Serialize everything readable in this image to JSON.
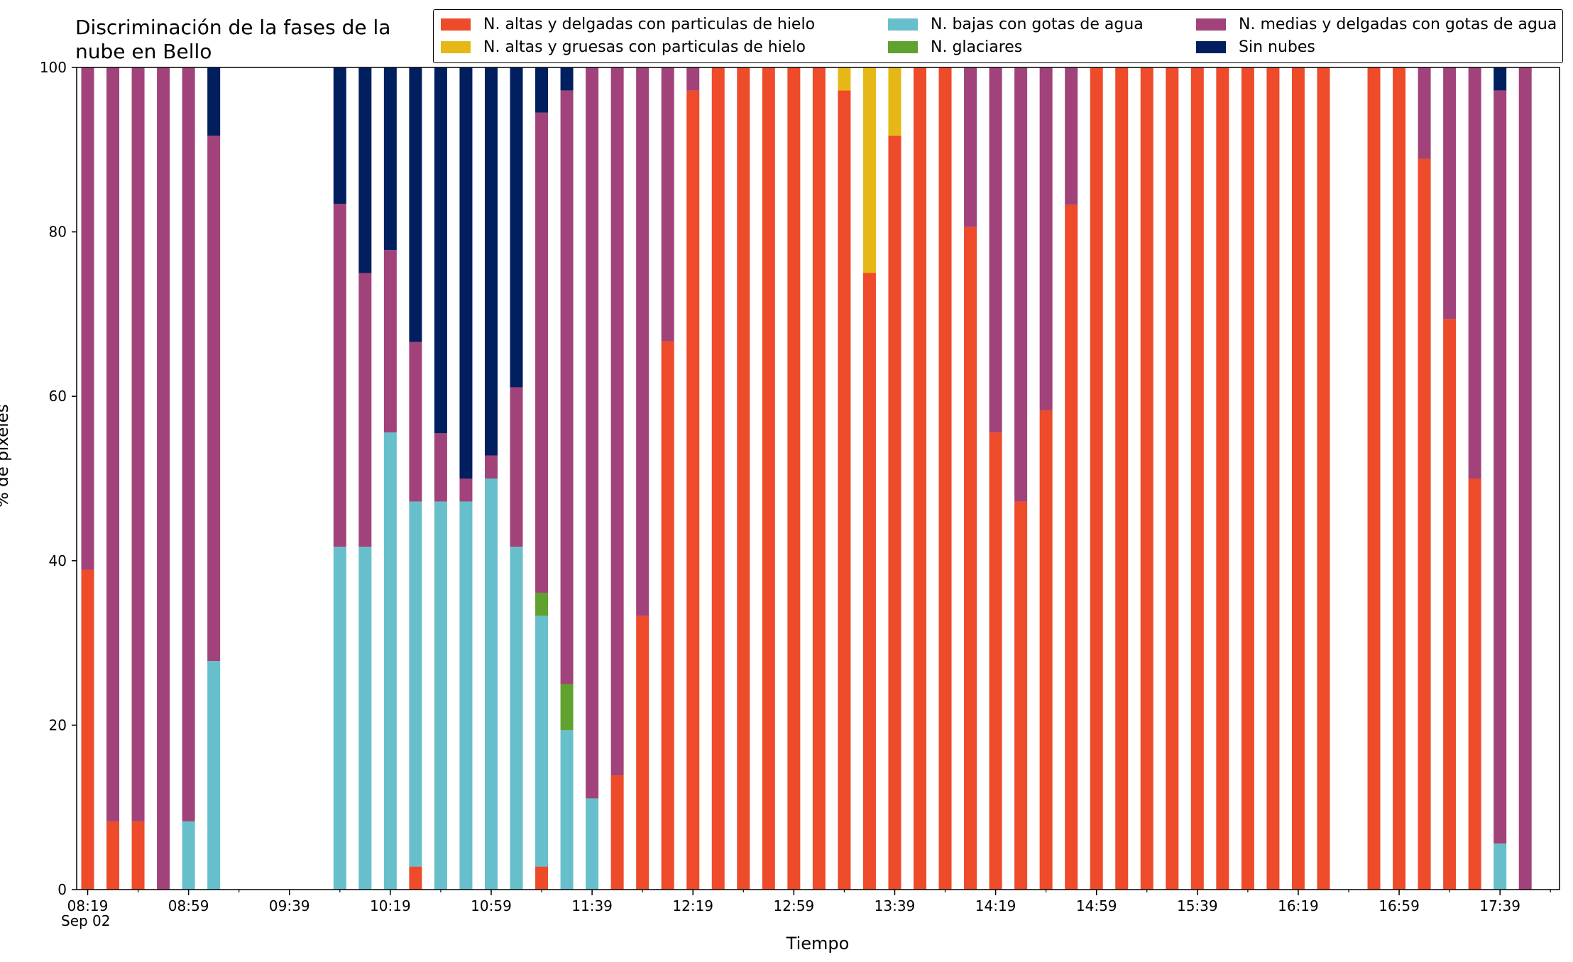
{
  "chart_data": {
    "type": "bar",
    "stacked": true,
    "title_lines": [
      "Discriminación de la fases de la",
      "nube en Bello"
    ],
    "xlabel": "Tiempo",
    "ylabel": "% de pixeles",
    "date_label": "Sep 02",
    "ylim": [
      0,
      100
    ],
    "yticks": [
      0,
      20,
      40,
      60,
      80,
      100
    ],
    "xtick_labels": [
      "08:19",
      "08:59",
      "09:39",
      "10:19",
      "10:59",
      "11:39",
      "12:19",
      "12:59",
      "13:39",
      "14:19",
      "14:59",
      "15:39",
      "16:19",
      "16:59",
      "17:39"
    ],
    "x_start": "08:19",
    "x_end": "17:59",
    "x_step_minutes": 10,
    "minor_tick_minutes": 20,
    "grid": false,
    "legend_position": "top-right",
    "series": [
      {
        "name": "N. altas y delgadas con particulas de hielo",
        "color": "#ee4b2b"
      },
      {
        "name": "N. altas y gruesas con particulas de hielo",
        "color": "#e6b817"
      },
      {
        "name": "N. bajas con gotas de agua",
        "color": "#67bfcb"
      },
      {
        "name": "N. glaciares",
        "color": "#60a22f"
      },
      {
        "name": "N. medias y delgadas con gotas de agua",
        "color": "#a1437a"
      },
      {
        "name": "Sin nubes",
        "color": "#011f5e"
      }
    ],
    "bars": [
      {
        "time": "08:19",
        "values": [
          38.9,
          0,
          0,
          0,
          61.1,
          0
        ]
      },
      {
        "time": "08:29",
        "values": [
          8.3,
          0,
          0,
          0,
          91.7,
          0
        ]
      },
      {
        "time": "08:39",
        "values": [
          8.3,
          0,
          0,
          0,
          91.7,
          0
        ]
      },
      {
        "time": "08:49",
        "values": [
          0,
          0,
          0,
          0,
          100,
          0
        ]
      },
      {
        "time": "08:59",
        "values": [
          0,
          0,
          8.3,
          0,
          91.7,
          0
        ]
      },
      {
        "time": "09:09",
        "values": [
          0,
          0,
          27.8,
          0,
          63.9,
          8.3
        ]
      },
      {
        "time": "09:19",
        "values": null
      },
      {
        "time": "09:29",
        "values": null
      },
      {
        "time": "09:39",
        "values": null
      },
      {
        "time": "09:49",
        "values": null
      },
      {
        "time": "09:59",
        "values": [
          0,
          0,
          41.7,
          0,
          41.7,
          16.6
        ]
      },
      {
        "time": "10:09",
        "values": [
          0,
          0,
          41.7,
          0,
          33.3,
          25.0
        ]
      },
      {
        "time": "10:19",
        "values": [
          0,
          0,
          55.6,
          0,
          22.2,
          22.2
        ]
      },
      {
        "time": "10:29",
        "values": [
          2.8,
          0,
          44.4,
          0,
          19.4,
          33.4
        ]
      },
      {
        "time": "10:39",
        "values": [
          0,
          0,
          47.2,
          0,
          8.3,
          44.5
        ]
      },
      {
        "time": "10:49",
        "values": [
          0,
          0,
          47.2,
          0,
          2.8,
          50.0
        ]
      },
      {
        "time": "10:59",
        "values": [
          0,
          0,
          50.0,
          0,
          2.8,
          47.2
        ]
      },
      {
        "time": "11:09",
        "values": [
          0,
          0,
          41.7,
          0,
          19.4,
          38.9
        ]
      },
      {
        "time": "11:19",
        "values": [
          2.8,
          0,
          30.5,
          2.8,
          58.4,
          5.5
        ]
      },
      {
        "time": "11:29",
        "values": [
          0,
          0,
          19.4,
          5.6,
          72.2,
          2.8
        ]
      },
      {
        "time": "11:39",
        "values": [
          0,
          0,
          11.1,
          0,
          88.9,
          0
        ]
      },
      {
        "time": "11:49",
        "values": [
          13.9,
          0,
          0,
          0,
          86.1,
          0
        ]
      },
      {
        "time": "11:59",
        "values": [
          33.3,
          0,
          0,
          0,
          66.7,
          0
        ]
      },
      {
        "time": "12:09",
        "values": [
          66.7,
          0,
          0,
          0,
          33.3,
          0
        ]
      },
      {
        "time": "12:19",
        "values": [
          97.2,
          0,
          0,
          0,
          2.8,
          0
        ]
      },
      {
        "time": "12:29",
        "values": [
          100,
          0,
          0,
          0,
          0,
          0
        ]
      },
      {
        "time": "12:39",
        "values": [
          100,
          0,
          0,
          0,
          0,
          0
        ]
      },
      {
        "time": "12:49",
        "values": [
          100,
          0,
          0,
          0,
          0,
          0
        ]
      },
      {
        "time": "12:59",
        "values": [
          100,
          0,
          0,
          0,
          0,
          0
        ]
      },
      {
        "time": "13:09",
        "values": [
          100,
          0,
          0,
          0,
          0,
          0
        ]
      },
      {
        "time": "13:19",
        "values": [
          97.2,
          2.8,
          0,
          0,
          0,
          0
        ]
      },
      {
        "time": "13:29",
        "values": [
          75.0,
          25.0,
          0,
          0,
          0,
          0
        ]
      },
      {
        "time": "13:39",
        "values": [
          91.7,
          8.3,
          0,
          0,
          0,
          0
        ]
      },
      {
        "time": "13:49",
        "values": [
          100,
          0,
          0,
          0,
          0,
          0
        ]
      },
      {
        "time": "13:59",
        "values": [
          100,
          0,
          0,
          0,
          0,
          0
        ]
      },
      {
        "time": "14:09",
        "values": [
          80.6,
          0,
          0,
          0,
          19.4,
          0
        ]
      },
      {
        "time": "14:19",
        "values": [
          55.6,
          0,
          0,
          0,
          44.4,
          0
        ]
      },
      {
        "time": "14:29",
        "values": [
          47.2,
          0,
          0,
          0,
          52.8,
          0
        ]
      },
      {
        "time": "14:39",
        "values": [
          58.3,
          0,
          0,
          0,
          41.7,
          0
        ]
      },
      {
        "time": "14:49",
        "values": [
          83.3,
          0,
          0,
          0,
          16.7,
          0
        ]
      },
      {
        "time": "14:59",
        "values": [
          100,
          0,
          0,
          0,
          0,
          0
        ]
      },
      {
        "time": "15:09",
        "values": [
          100,
          0,
          0,
          0,
          0,
          0
        ]
      },
      {
        "time": "15:19",
        "values": [
          100,
          0,
          0,
          0,
          0,
          0
        ]
      },
      {
        "time": "15:29",
        "values": [
          100,
          0,
          0,
          0,
          0,
          0
        ]
      },
      {
        "time": "15:39",
        "values": [
          100,
          0,
          0,
          0,
          0,
          0
        ]
      },
      {
        "time": "15:49",
        "values": [
          100,
          0,
          0,
          0,
          0,
          0
        ]
      },
      {
        "time": "15:59",
        "values": [
          100,
          0,
          0,
          0,
          0,
          0
        ]
      },
      {
        "time": "16:09",
        "values": [
          100,
          0,
          0,
          0,
          0,
          0
        ]
      },
      {
        "time": "16:19",
        "values": [
          100,
          0,
          0,
          0,
          0,
          0
        ]
      },
      {
        "time": "16:29",
        "values": [
          100,
          0,
          0,
          0,
          0,
          0
        ]
      },
      {
        "time": "16:39",
        "values": null
      },
      {
        "time": "16:49",
        "values": [
          100,
          0,
          0,
          0,
          0,
          0
        ]
      },
      {
        "time": "16:59",
        "values": [
          100,
          0,
          0,
          0,
          0,
          0
        ]
      },
      {
        "time": "17:09",
        "values": [
          88.9,
          0,
          0,
          0,
          11.1,
          0
        ]
      },
      {
        "time": "17:19",
        "values": [
          69.4,
          0,
          0,
          0,
          30.6,
          0
        ]
      },
      {
        "time": "17:29",
        "values": [
          50.0,
          0,
          0,
          0,
          50.0,
          0
        ]
      },
      {
        "time": "17:39",
        "values": [
          0,
          0,
          5.6,
          0,
          91.6,
          2.8
        ]
      },
      {
        "time": "17:49",
        "values": [
          0,
          0,
          0,
          0,
          100,
          0
        ]
      }
    ]
  }
}
